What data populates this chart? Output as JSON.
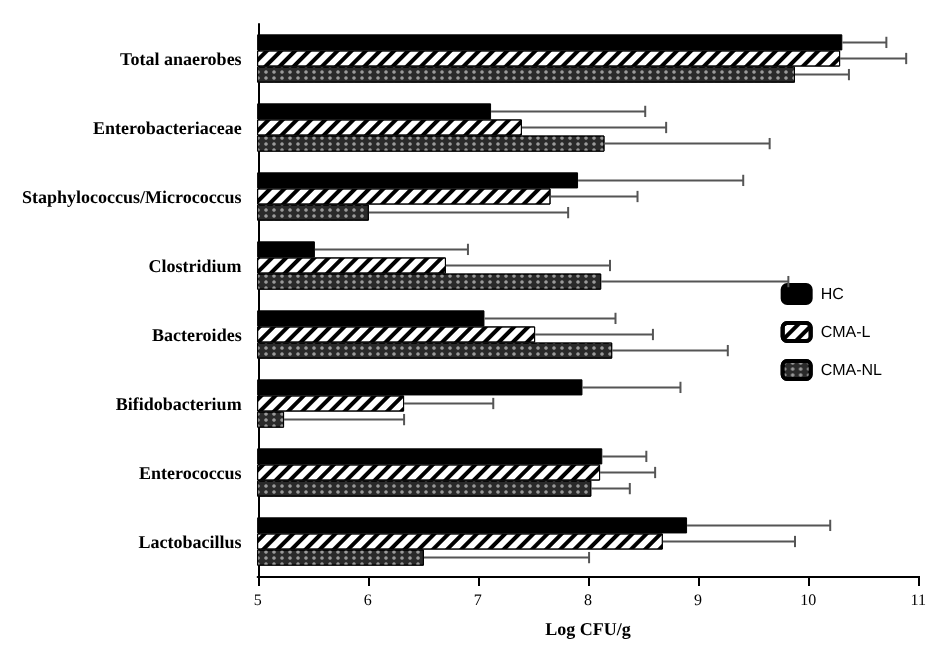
{
  "chart_data": {
    "type": "bar",
    "orientation": "horizontal",
    "xlabel": "Log CFU/g",
    "categories": [
      "Total anaerobes",
      "Enterobacteriaceae",
      "Staphylococcus/Micrococcus",
      "Clostridium",
      "Bacteroides",
      "Bifidobacterium",
      "Enterococcus",
      "Lactobacillus"
    ],
    "series": [
      {
        "name": "HC",
        "color": "#000000",
        "values": [
          10.31,
          7.12,
          7.91,
          5.52,
          7.06,
          7.95,
          8.13,
          8.9
        ],
        "errors": [
          [
            10.31,
            10.71
          ],
          [
            7.12,
            8.52
          ],
          [
            7.91,
            9.41
          ],
          [
            5.52,
            6.91
          ],
          [
            7.06,
            8.25
          ],
          [
            7.95,
            8.84
          ],
          [
            8.13,
            8.53
          ],
          [
            8.9,
            10.2
          ]
        ]
      },
      {
        "name": "CMA-L",
        "color": "#ffffff",
        "values": [
          10.29,
          7.4,
          7.66,
          6.71,
          7.52,
          6.33,
          8.11,
          8.68
        ],
        "errors": [
          [
            10.29,
            10.89
          ],
          [
            7.4,
            8.71
          ],
          [
            7.66,
            8.45
          ],
          [
            6.71,
            8.2
          ],
          [
            7.52,
            8.59
          ],
          [
            6.33,
            7.14
          ],
          [
            8.11,
            8.61
          ],
          [
            8.68,
            9.88
          ]
        ]
      },
      {
        "name": "CMA-NL",
        "color": "#2a2a2a",
        "values": [
          9.88,
          8.15,
          6.01,
          8.12,
          8.22,
          5.24,
          8.03,
          6.51
        ],
        "errors": [
          [
            9.88,
            10.37
          ],
          [
            8.15,
            9.65
          ],
          [
            6.01,
            7.82
          ],
          [
            8.12,
            9.82
          ],
          [
            8.22,
            9.27
          ],
          [
            5.24,
            6.33
          ],
          [
            8.03,
            8.38
          ],
          [
            6.51,
            8.01
          ]
        ]
      }
    ],
    "xlim": [
      5,
      11
    ],
    "xticks": [
      5,
      6,
      7,
      8,
      9,
      10,
      11
    ],
    "grid": false,
    "legend": "right"
  }
}
